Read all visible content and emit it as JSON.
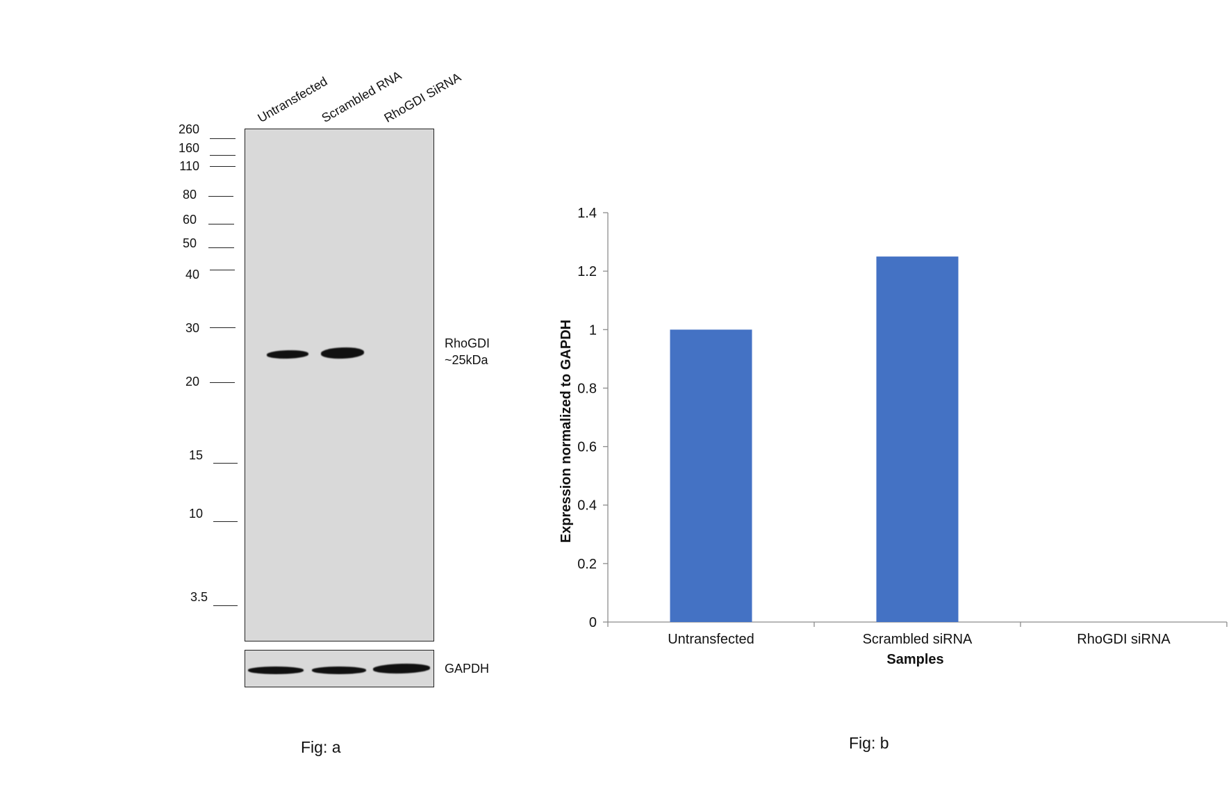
{
  "figure_a": {
    "lanes": [
      "Untransfected",
      "Scrambled RNA",
      "RhoGDI SiRNA"
    ],
    "markers": [
      "260",
      "160",
      "110",
      "80",
      "60",
      "50",
      "40",
      "30",
      "20",
      "15",
      "10",
      "3.5"
    ],
    "band_label_line1": "RhoGDI",
    "band_label_line2": "~25kDa",
    "loading_label": "GAPDH",
    "caption": "Fig: a"
  },
  "chart_data": {
    "type": "bar",
    "categories": [
      "Untransfected",
      "Scrambled siRNA",
      "RhoGDI siRNA"
    ],
    "values": [
      1.0,
      1.25,
      0.0
    ],
    "title": "",
    "xlabel": "Samples",
    "ylabel": "Expression normalized to GAPDH",
    "ylim": [
      0,
      1.4
    ],
    "yticks": [
      "0",
      "0.2",
      "0.4",
      "0.6",
      "0.8",
      "1",
      "1.2",
      "1.4"
    ],
    "bar_color": "#4472c4",
    "grid": false,
    "legend": "none"
  },
  "figure_b": {
    "caption": "Fig: b"
  }
}
